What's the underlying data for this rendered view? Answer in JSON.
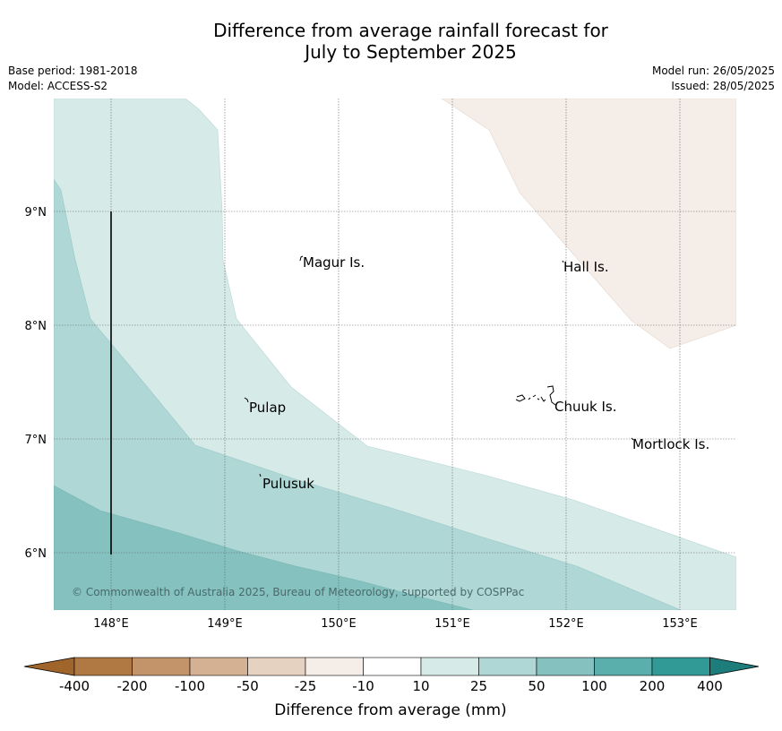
{
  "title_line1": "Difference from average rainfall forecast for",
  "title_line2": "July to September 2025",
  "info": {
    "base_period": "Base period: 1981-2018",
    "model": "Model: ACCESS-S2",
    "model_run": "Model run: 26/05/2025",
    "issued": "Issued: 28/05/2025"
  },
  "map": {
    "lon_ticks": [
      "148°E",
      "149°E",
      "150°E",
      "151°E",
      "152°E",
      "153°E"
    ],
    "lat_ticks": [
      "9°N",
      "8°N",
      "7°N",
      "6°N"
    ],
    "places": [
      "Magur Is.",
      "Hall Is.",
      "Pulap",
      "Chuuk Is.",
      "Mortlock Is.",
      "Pulusuk"
    ],
    "copyright": "© Commonwealth of Australia 2025, Bureau of Meteorology, supported by COSPPac"
  },
  "colorbar": {
    "labels": [
      "-400",
      "-200",
      "-100",
      "-50",
      "-25",
      "-10",
      "10",
      "25",
      "50",
      "100",
      "200",
      "400"
    ],
    "colors": [
      "#a0652a",
      "#b07842",
      "#c39469",
      "#d5b194",
      "#e6d2c0",
      "#f5ede7",
      "#ffffff",
      "#d6eae8",
      "#aed7d5",
      "#84c1bf",
      "#5aaeab",
      "#329a96",
      "#1c7d7a"
    ],
    "label": "Difference from average (mm)"
  }
}
